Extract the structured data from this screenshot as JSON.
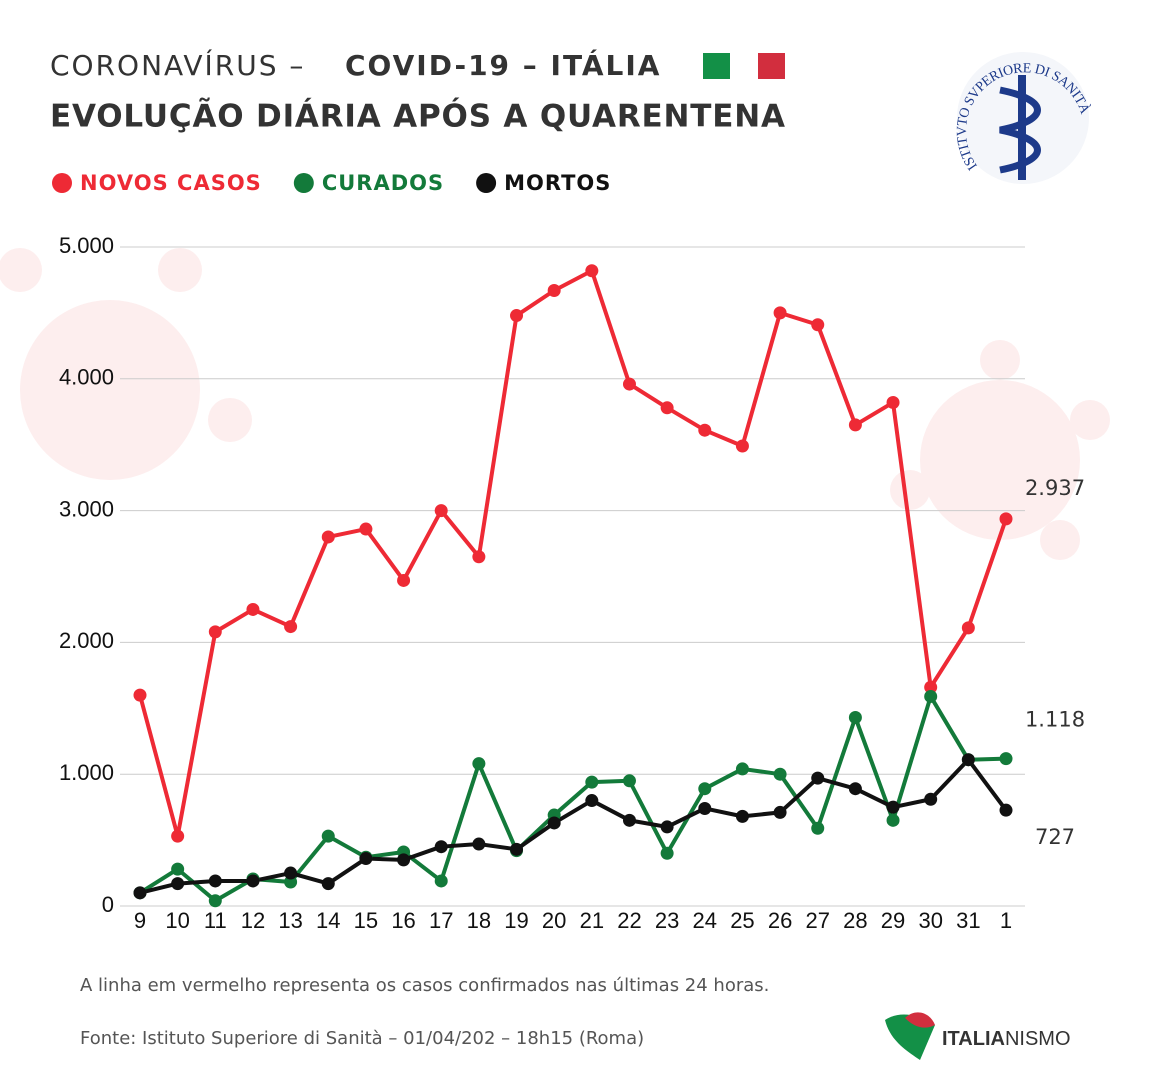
{
  "chart_data": {
    "type": "line",
    "title_light": "CORONAVÍRUS –",
    "title_bold": "COVID-19 – ITÁLIA",
    "subtitle": "EVOLUÇÃO DIÁRIA APÓS A QUARENTENA",
    "categories": [
      "9",
      "10",
      "11",
      "12",
      "13",
      "14",
      "15",
      "16",
      "17",
      "18",
      "19",
      "20",
      "21",
      "22",
      "23",
      "24",
      "25",
      "26",
      "27",
      "28",
      "29",
      "30",
      "31",
      "1"
    ],
    "series": [
      {
        "name": "NOVOS CASOS",
        "color": "#ee2a35",
        "values": [
          1600,
          530,
          2080,
          2250,
          2120,
          2800,
          2860,
          2470,
          3000,
          2650,
          4480,
          4670,
          4820,
          3960,
          3780,
          3610,
          3490,
          4500,
          4410,
          3650,
          3820,
          1660,
          2110,
          2937
        ],
        "value_labels": [
          null,
          null,
          null,
          null,
          null,
          null,
          null,
          null,
          null,
          null,
          null,
          null,
          null,
          null,
          null,
          null,
          null,
          null,
          null,
          null,
          null,
          null,
          null,
          "2.937"
        ]
      },
      {
        "name": "CURADOS",
        "color": "#137a3a",
        "values": [
          100,
          280,
          40,
          205,
          182,
          530,
          370,
          410,
          190,
          1080,
          420,
          690,
          940,
          950,
          400,
          890,
          1040,
          1000,
          590,
          1430,
          650,
          1590,
          1110,
          1118
        ],
        "value_labels": [
          null,
          null,
          null,
          null,
          null,
          null,
          null,
          null,
          null,
          null,
          null,
          null,
          null,
          null,
          null,
          null,
          null,
          null,
          null,
          null,
          null,
          null,
          null,
          "1.118"
        ]
      },
      {
        "name": "MORTOS",
        "color": "#111111",
        "values": [
          100,
          170,
          190,
          190,
          250,
          170,
          360,
          350,
          450,
          470,
          430,
          630,
          800,
          650,
          600,
          740,
          680,
          710,
          970,
          890,
          750,
          810,
          1110,
          727
        ],
        "value_labels": [
          null,
          null,
          null,
          null,
          null,
          null,
          null,
          null,
          null,
          null,
          null,
          null,
          null,
          null,
          null,
          null,
          null,
          null,
          null,
          null,
          null,
          null,
          null,
          "727"
        ]
      }
    ],
    "ylim": [
      0,
      5000
    ],
    "yticks": [
      0,
      {
        "value": 1000,
        "label": "1.000"
      },
      {
        "value": 2000,
        "label": "2.000"
      },
      {
        "value": 3000,
        "label": "3.000"
      },
      {
        "value": 4000,
        "label": "4.000"
      },
      {
        "value": 5000,
        "label": "5.000"
      }
    ],
    "grid": true,
    "flag_colors": [
      "#139047",
      "#d22e3e"
    ],
    "note": "A linha em vermelho representa os casos confirmados nas últimas 24 horas.",
    "source": "Fonte: Istituto Superiore di Sanità – 01/04/202 – 18h15 (Roma)",
    "logo_text": "ISTITVTO SVPERIORE DI SANITÀ",
    "brand": [
      "ITALIA",
      "NISMO"
    ]
  }
}
